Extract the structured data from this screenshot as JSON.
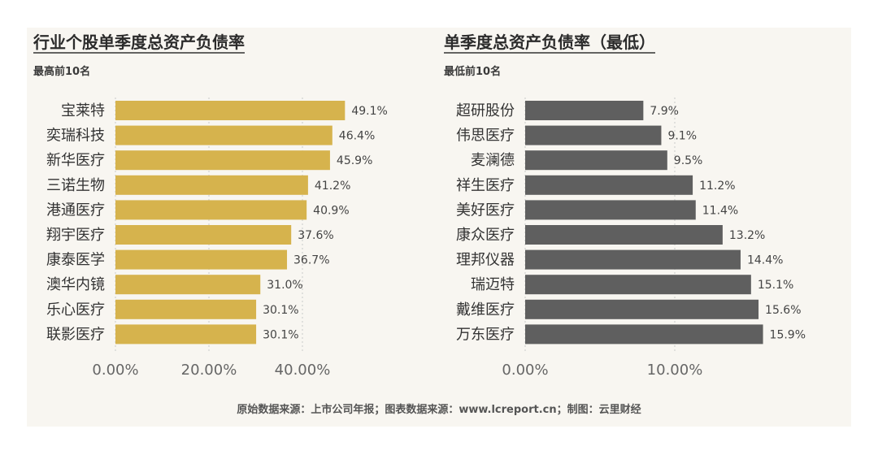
{
  "colors": {
    "left_bar": "#d6b34d",
    "right_bar": "#5f5f5f",
    "background": "#f8f6f1"
  },
  "chart_data": [
    {
      "type": "bar",
      "orientation": "horizontal",
      "title": "行业个股单季度总资产负债率",
      "subtitle": "最高前10名",
      "categories": [
        "宝莱特",
        "奕瑞科技",
        "新华医疗",
        "三诺生物",
        "港通医疗",
        "翔宇医疗",
        "康泰医学",
        "澳华内镜",
        "乐心医疗",
        "联影医疗"
      ],
      "values": [
        49.1,
        46.4,
        45.9,
        41.2,
        40.9,
        37.6,
        36.7,
        31.0,
        30.1,
        30.1
      ],
      "value_labels": [
        "49.1%",
        "46.4%",
        "45.9%",
        "41.2%",
        "40.9%",
        "37.6%",
        "36.7%",
        "31.0%",
        "30.1%",
        "30.1%"
      ],
      "xticks": [
        0,
        20,
        40
      ],
      "xtick_labels": [
        "0.00%",
        "20.00%",
        "40.00%"
      ],
      "xlim": [
        0,
        60
      ],
      "grid": "dotted-vertical"
    },
    {
      "type": "bar",
      "orientation": "horizontal",
      "title": "单季度总资产负债率（最低）",
      "subtitle": "最低前10名",
      "categories": [
        "超研股份",
        "伟思医疗",
        "麦澜德",
        "祥生医疗",
        "美好医疗",
        "康众医疗",
        "理邦仪器",
        "瑞迈特",
        "戴维医疗",
        "万东医疗"
      ],
      "values": [
        7.9,
        9.1,
        9.5,
        11.2,
        11.4,
        13.2,
        14.4,
        15.1,
        15.6,
        15.9
      ],
      "value_labels": [
        "7.9%",
        "9.1%",
        "9.5%",
        "11.2%",
        "11.4%",
        "13.2%",
        "14.4%",
        "15.1%",
        "15.6%",
        "15.9%"
      ],
      "xticks": [
        0,
        10
      ],
      "xtick_labels": [
        "0.00%",
        "10.00%"
      ],
      "xlim": [
        0,
        20
      ],
      "grid": "dotted-vertical"
    }
  ],
  "source": "原始数据来源：上市公司年报；图表数据来源：www.lcreport.cn；制图：云里财经"
}
